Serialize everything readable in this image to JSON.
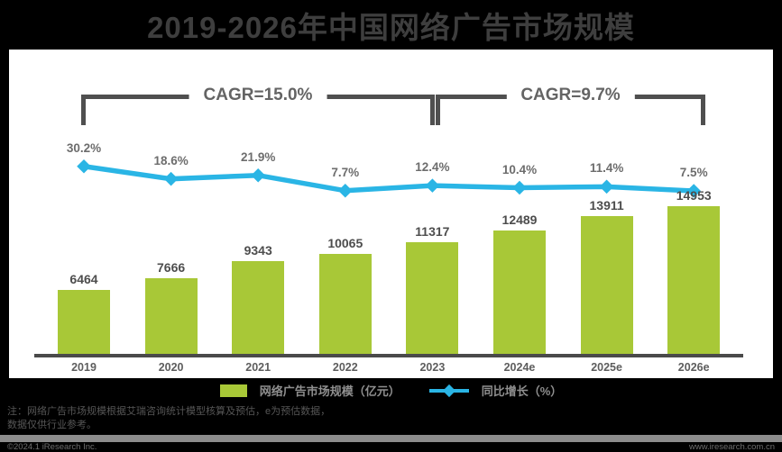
{
  "title": "2019-2026年中国网络广告市场规模",
  "cagr": {
    "left": "CAGR=15.0%",
    "right": "CAGR=9.7%"
  },
  "chart_data": {
    "type": "bar",
    "title": "2019-2026年中国网络广告市场规模",
    "categories": [
      "2019",
      "2020",
      "2021",
      "2022",
      "2023",
      "2024e",
      "2025e",
      "2026e"
    ],
    "series": [
      {
        "name": "网络广告市场规模（亿元）",
        "type": "bar",
        "values": [
          6464,
          7666,
          9343,
          10065,
          11317,
          12489,
          13911,
          14953
        ],
        "color": "#a8c837"
      },
      {
        "name": "同比增长（%）",
        "type": "line",
        "values": [
          30.2,
          18.6,
          21.9,
          7.7,
          12.4,
          10.4,
          11.4,
          7.5
        ],
        "color": "#2ab5e5"
      }
    ],
    "annotations": [
      {
        "text": "CAGR=15.0%",
        "span": [
          "2019",
          "2023"
        ]
      },
      {
        "text": "CAGR=9.7%",
        "span": [
          "2023",
          "2026e"
        ]
      }
    ],
    "xlabel": "",
    "ylabel": "",
    "grid": false,
    "legend_position": "bottom"
  },
  "legend": {
    "bar_label": "网络广告市场规模（亿元）",
    "line_label": "同比增长（%）"
  },
  "notes": {
    "line1": "注：网络广告市场规模根据艾瑞咨询统计模型核算及预估，e为预估数据，",
    "line2": "数据仅供行业参考。"
  },
  "footer": {
    "copyright": "©2024.1 iResearch Inc.",
    "website": "www.iresearch.com.cn"
  }
}
